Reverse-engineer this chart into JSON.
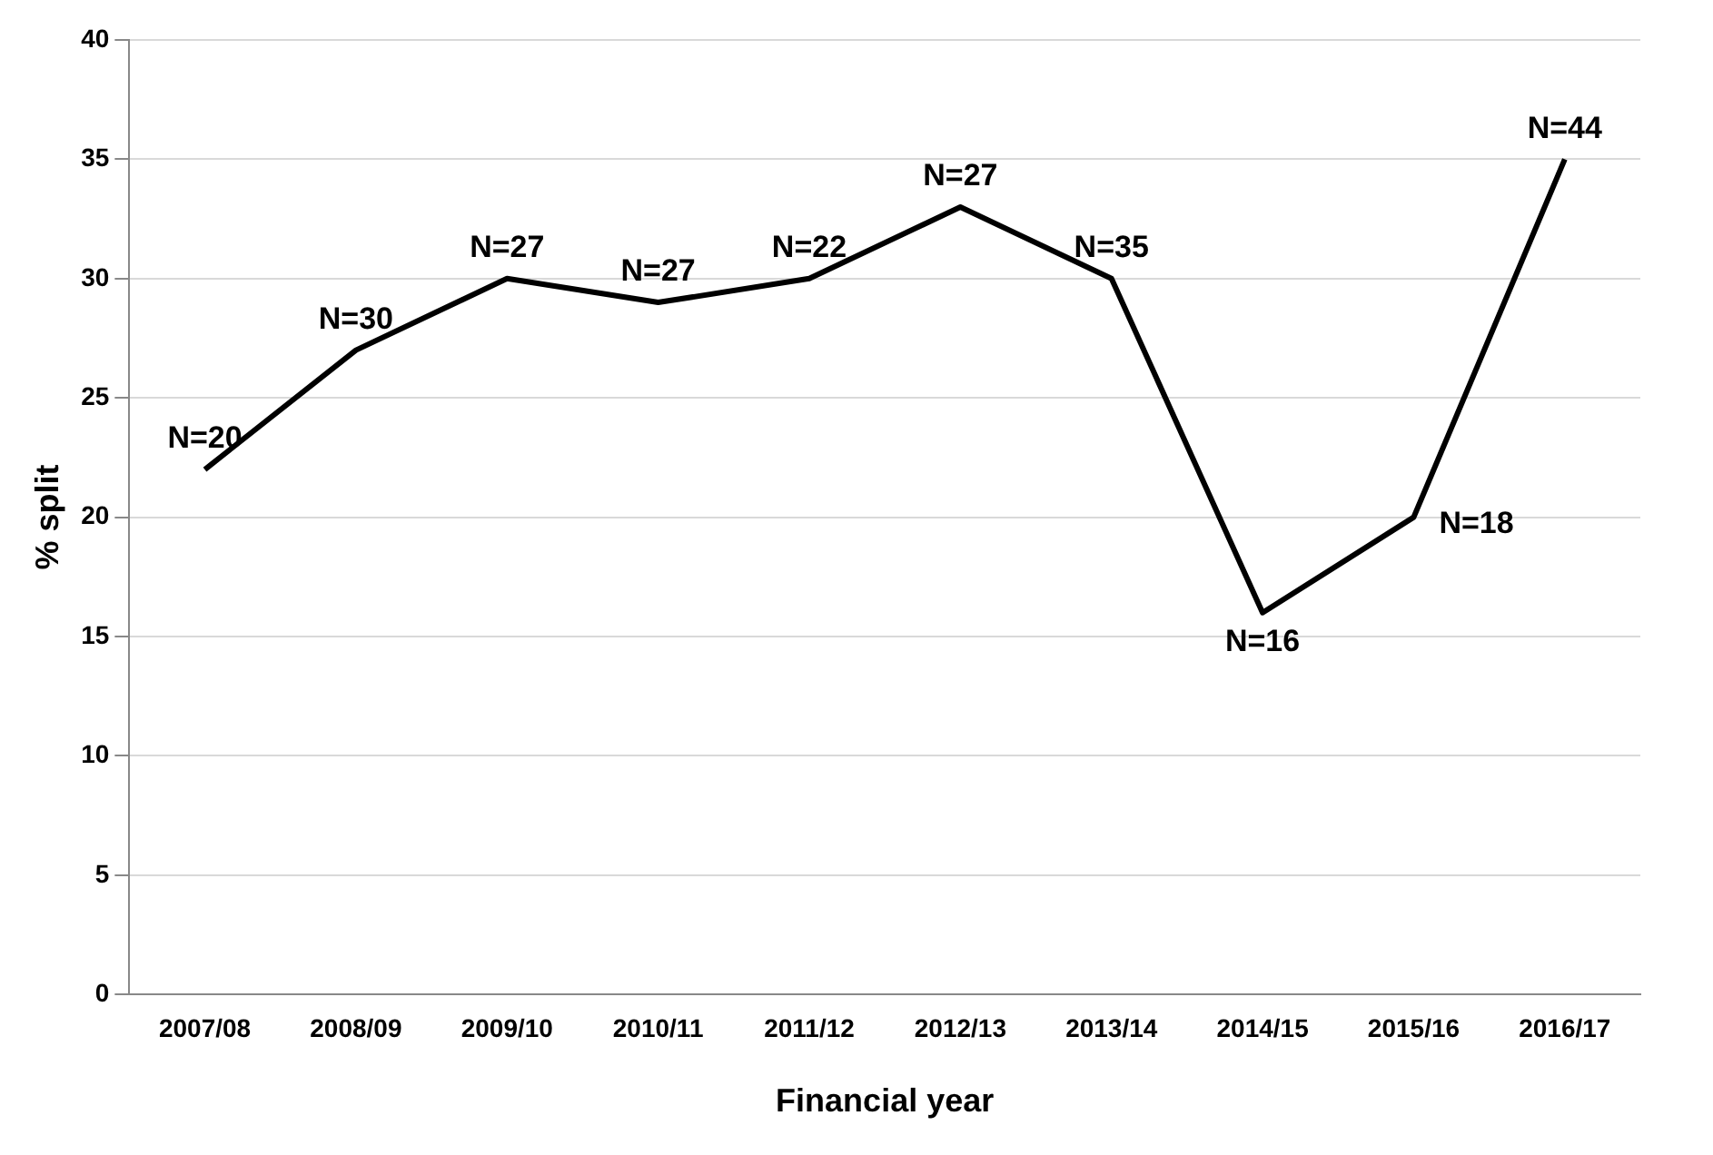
{
  "chart_data": {
    "type": "line",
    "xlabel": "Financial year",
    "ylabel": "% split",
    "categories": [
      "2007/08",
      "2008/09",
      "2009/10",
      "2010/11",
      "2011/12",
      "2012/13",
      "2013/14",
      "2014/15",
      "2015/16",
      "2016/17"
    ],
    "series": [
      {
        "color": "#000000",
        "values": [
          22,
          27,
          30,
          29,
          30,
          33,
          30,
          16,
          20,
          35
        ]
      }
    ],
    "ylim": [
      0,
      40
    ],
    "yticks": [
      0,
      5,
      10,
      15,
      20,
      25,
      30,
      35,
      40
    ],
    "grid": "y",
    "legend": false,
    "marker": "none",
    "line_style": "solid",
    "annotations": [
      {
        "text": "N=20",
        "x": "2007/08",
        "y": 22
      },
      {
        "text": "N=30",
        "x": "2008/09",
        "y": 27
      },
      {
        "text": "N=27",
        "x": "2009/10",
        "y": 30
      },
      {
        "text": "N=27",
        "x": "2010/11",
        "y": 29
      },
      {
        "text": "N=22",
        "x": "2011/12",
        "y": 30
      },
      {
        "text": "N=27",
        "x": "2012/13",
        "y": 33
      },
      {
        "text": "N=35",
        "x": "2013/14",
        "y": 30
      },
      {
        "text": "N=16",
        "x": "2014/15",
        "y": 16
      },
      {
        "text": "N=18",
        "x": "2015/16",
        "y": 20
      },
      {
        "text": "N=44",
        "x": "2016/17",
        "y": 35
      }
    ]
  }
}
